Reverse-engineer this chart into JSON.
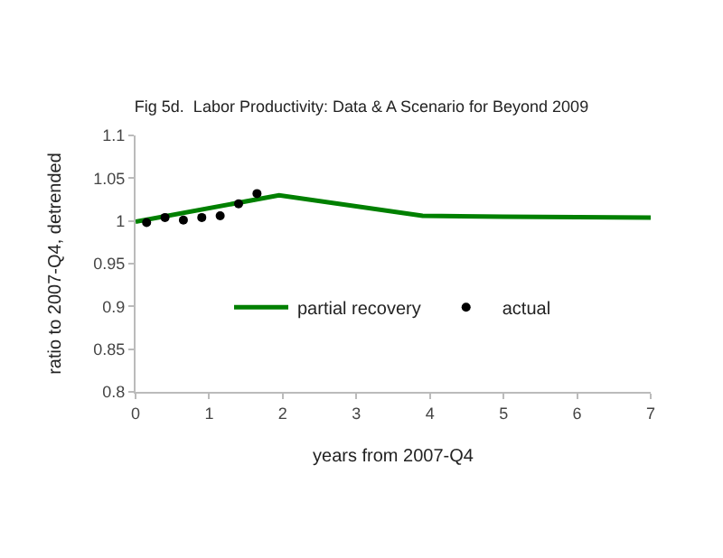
{
  "chart_data": {
    "type": "line",
    "title": "Fig 5d.  Labor Productivity: Data & A Scenario for Beyond 2009",
    "xlabel": "years from 2007-Q4",
    "ylabel": "ratio to 2007-Q4, detrended",
    "series": [
      {
        "name": "partial recovery",
        "color": "#008000",
        "x": [
          0,
          1.95,
          3.9,
          5,
          7
        ],
        "values": [
          0.999,
          1.03,
          1.006,
          1.005,
          1.004
        ],
        "marker": "none"
      },
      {
        "name": "actual",
        "type": "scatter",
        "color": "#000000",
        "x": [
          0.15,
          0.4,
          0.65,
          0.9,
          1.15,
          1.4,
          1.65
        ],
        "values": [
          0.998,
          1.004,
          1.001,
          1.004,
          1.006,
          1.02,
          1.032
        ],
        "marker": "circle"
      }
    ],
    "xlim": [
      0,
      7
    ],
    "xticks": [
      0,
      1,
      2,
      3,
      4,
      5,
      6,
      7
    ],
    "ylim": [
      0.8,
      1.1
    ],
    "yticks": [
      0.8,
      0.85,
      0.9,
      0.95,
      1,
      1.05,
      1.1
    ],
    "legend": "center"
  }
}
